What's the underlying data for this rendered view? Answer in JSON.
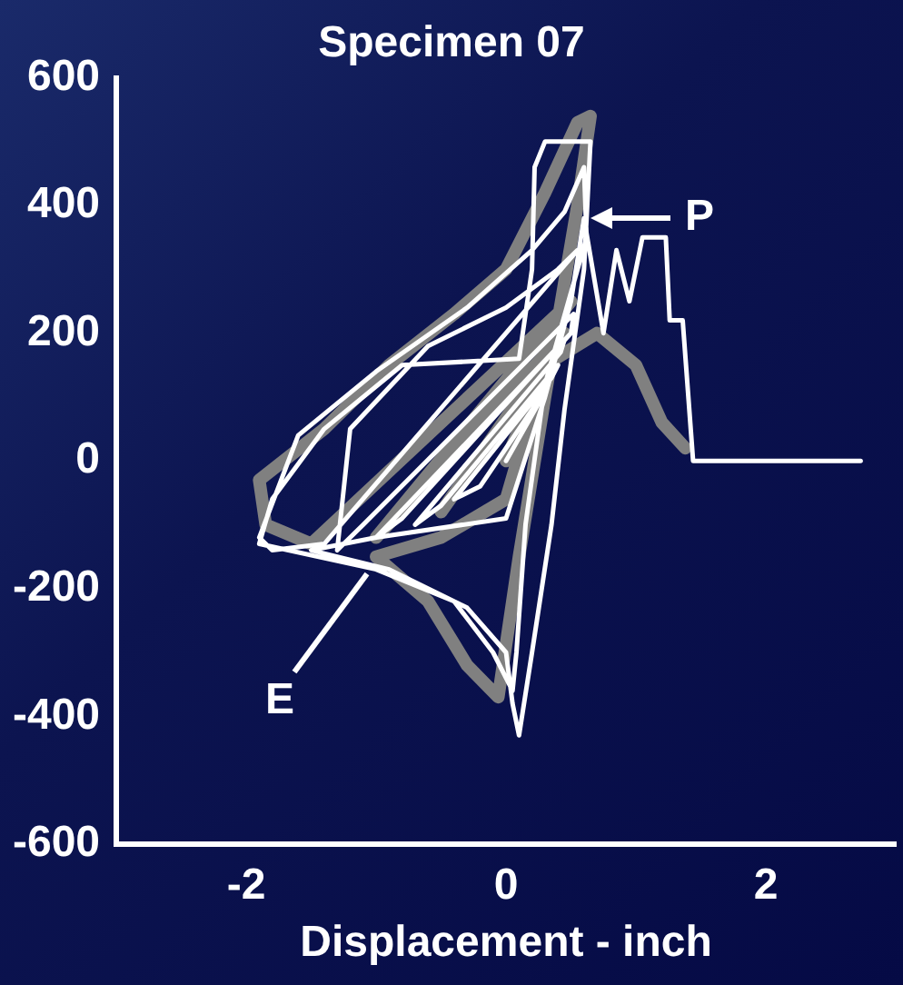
{
  "chart_data": {
    "type": "line",
    "title": "Specimen 07",
    "xlabel": "Displacement - inch",
    "xlim": [
      -3,
      3
    ],
    "xticks": [
      -2,
      0,
      2
    ],
    "ylim": [
      -600,
      600
    ],
    "yticks": [
      -600,
      -400,
      -200,
      0,
      200,
      400,
      600
    ],
    "grid": false,
    "legend": false,
    "marker": "none",
    "line_style": "solid",
    "series": [
      {
        "color": "#808080",
        "x": [
          0,
          0.3,
          -0.5,
          0.45,
          -1.0,
          0.5,
          -1.5,
          -1.85,
          -1.9,
          -1.4,
          -0.9,
          -0.4,
          0,
          0.3,
          0.55,
          0.65,
          0.55,
          0.3,
          0.1,
          -0.06,
          -0.3,
          -0.6,
          -1.0,
          -0.5,
          0,
          0.3,
          0.7,
          1.0,
          1.2,
          1.38
        ],
        "values": [
          0,
          150,
          -80,
          200,
          -120,
          250,
          -130,
          -100,
          -30,
          50,
          150,
          230,
          300,
          420,
          530,
          540,
          400,
          100,
          -150,
          -370,
          -320,
          -220,
          -150,
          -120,
          -60,
          150,
          200,
          150,
          60,
          20
        ]
      },
      {
        "color": "#ffffff",
        "x": [
          0,
          0.25,
          0.3,
          -0.2,
          -0.4,
          0.35,
          0.4,
          -0.5,
          -0.7,
          0.42,
          0.45,
          -0.8,
          -1.0,
          0.5,
          0.52,
          -1.1,
          -1.3,
          -1.2,
          -0.6,
          0,
          0.4,
          0.55,
          -1.4,
          -1.8,
          -1.9,
          -1.6,
          -1.0,
          -0.3,
          0.2,
          0.45,
          0.6,
          0.62,
          0.3,
          0.15,
          0.08,
          0.05,
          -0.1,
          -0.4,
          -1.0,
          -1.9,
          -1.8,
          -1.4,
          -0.8,
          0.1,
          0.2,
          0.22,
          0.3,
          0.65,
          0.6,
          0.45,
          0.35,
          0.2,
          0.1,
          0.05,
          0,
          -0.3,
          -0.9,
          -1.5,
          -1.0,
          0,
          0.3,
          0.5,
          0.6,
          0.75,
          0.85,
          0.95,
          1.05,
          1.23,
          1.26,
          1.36,
          1.44,
          2.73
        ],
        "values": [
          0,
          90,
          110,
          -40,
          -60,
          130,
          150,
          -70,
          -100,
          170,
          190,
          -90,
          -120,
          200,
          230,
          -100,
          -140,
          50,
          180,
          240,
          300,
          330,
          -130,
          -140,
          -120,
          40,
          140,
          240,
          330,
          390,
          460,
          350,
          120,
          -100,
          -300,
          -360,
          -300,
          -220,
          -170,
          -130,
          -60,
          50,
          150,
          160,
          300,
          460,
          500,
          500,
          300,
          80,
          -100,
          -300,
          -430,
          -380,
          -300,
          -230,
          -170,
          -140,
          -120,
          -90,
          100,
          250,
          380,
          200,
          330,
          250,
          350,
          350,
          220,
          220,
          0,
          0
        ]
      }
    ],
    "annotations": [
      {
        "text": "P",
        "x": 0.65,
        "y": 380
      },
      {
        "text": "E",
        "x": -1.07,
        "y": -177
      }
    ]
  }
}
